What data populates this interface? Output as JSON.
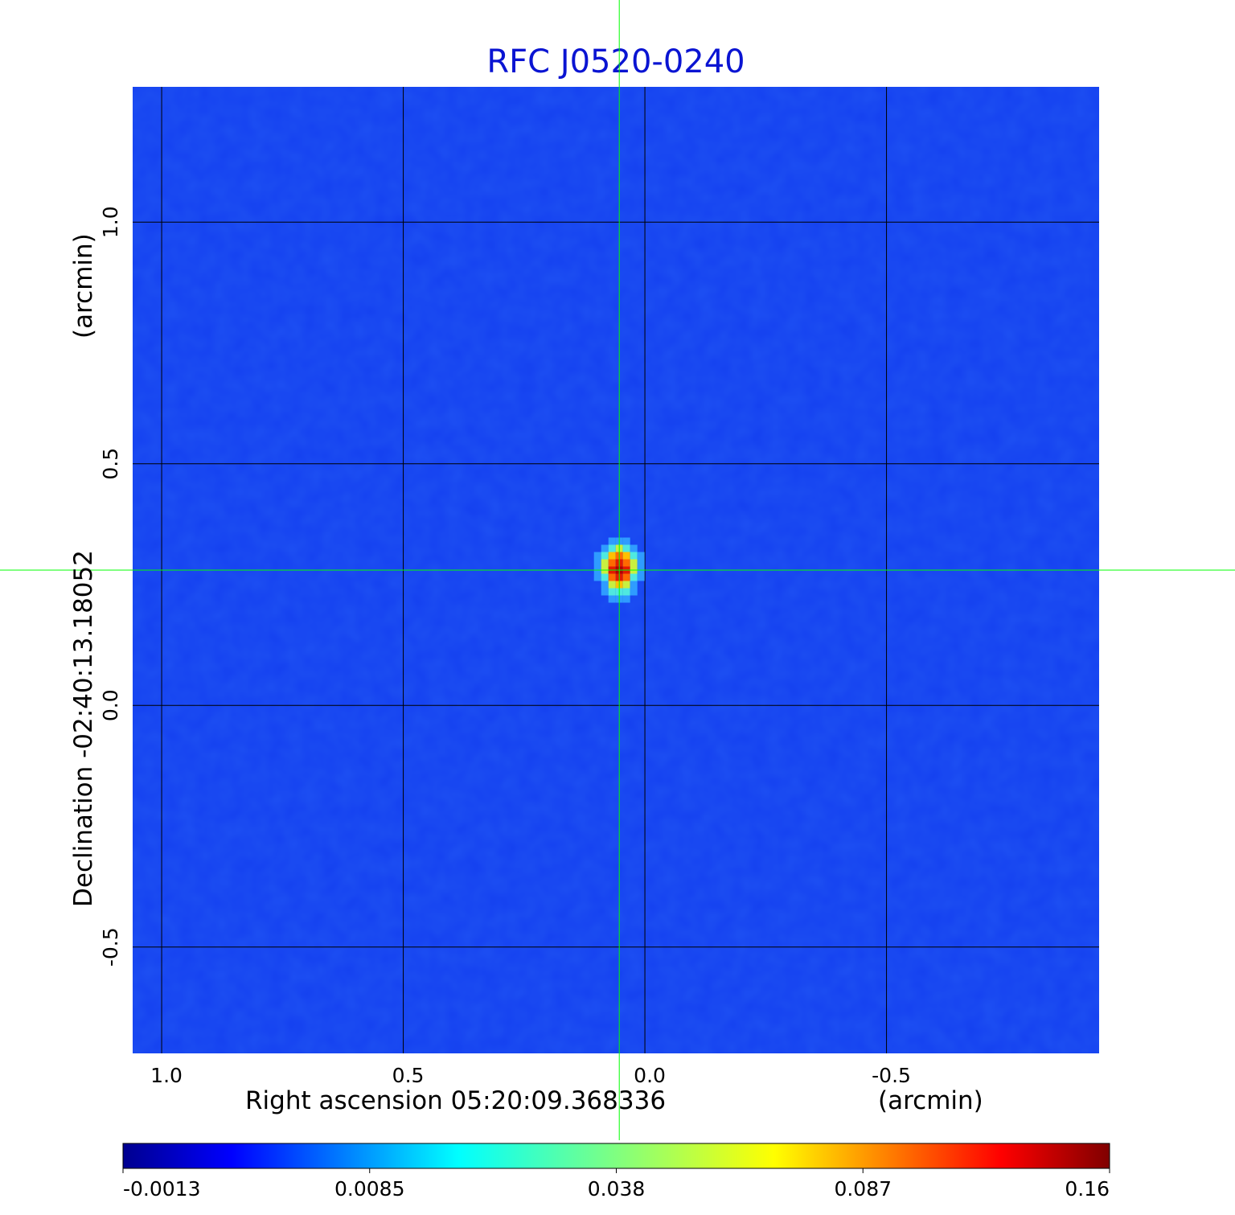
{
  "chart_data": {
    "type": "heatmap",
    "title": "RFC J0520-0240",
    "xlabel": "Right ascension  05:20:09.368336",
    "xunit": "(arcmin)",
    "ylabel": "Declination  -02:40:13.18052",
    "yunit": "(arcmin)",
    "xlim": [
      1.06,
      -0.94
    ],
    "ylim": [
      -0.72,
      1.28
    ],
    "x_ticks": [
      1.0,
      0.5,
      0.0,
      -0.5
    ],
    "x_tick_labels": [
      "1.0",
      "0.5",
      "0.0",
      "-0.5"
    ],
    "y_ticks": [
      1.0,
      0.5,
      0.0,
      -0.5
    ],
    "y_tick_labels": [
      "1.0",
      "0.5",
      "0.0",
      "-0.5"
    ],
    "grid": true,
    "grid_color": "#000000",
    "crosshair": {
      "x": 0.053,
      "y": 0.28,
      "color": "#00ff00"
    },
    "source_peak": {
      "x": 0.053,
      "y": 0.28,
      "value": 0.16
    },
    "colorbar": {
      "colormap": "jet",
      "scale": "nonlinear",
      "min": -0.0013,
      "max": 0.16,
      "tick_labels": [
        "-0.0013",
        "0.0085",
        "0.038",
        "0.087",
        "0.16"
      ]
    },
    "background_color": "#1440f0",
    "title_color": "#0a14d2"
  }
}
